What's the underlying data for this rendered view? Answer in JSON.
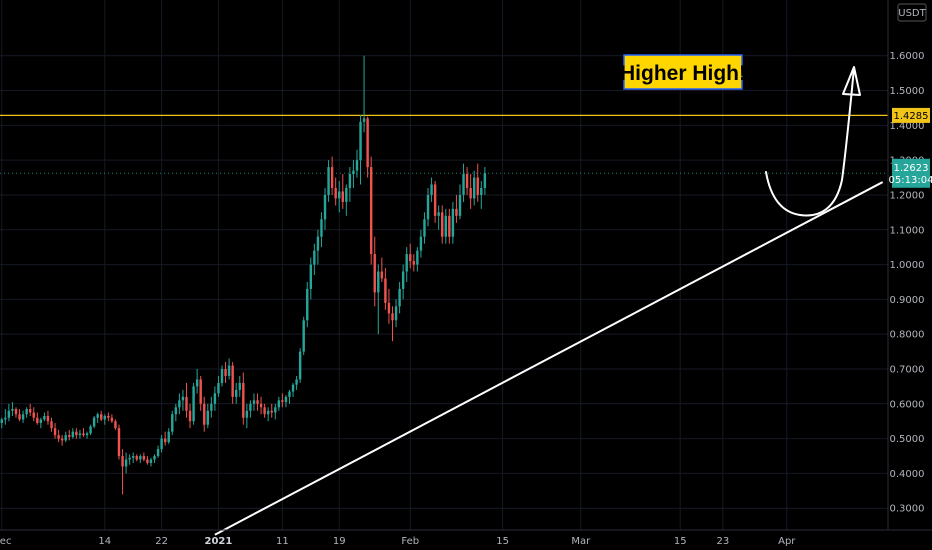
{
  "chart_data": {
    "type": "candlestick",
    "currency": "USDT",
    "y_ticks": [
      0.3,
      0.4,
      0.5,
      0.6,
      0.7,
      0.8,
      0.9,
      1.0,
      1.1,
      1.2,
      1.3,
      1.4,
      1.5,
      1.6
    ],
    "y_tick_labels": [
      "0.3000",
      "0.4000",
      "0.5000",
      "0.6000",
      "0.7000",
      "0.8000",
      "0.9000",
      "1.0000",
      "1.1000",
      "1.2000",
      "1.3000",
      "1.4000",
      "1.5000",
      "1.6000"
    ],
    "ylim": [
      0.2375,
      1.76
    ],
    "x_tick_labels": [
      "Dec",
      "14",
      "22",
      "2021",
      "11",
      "19",
      "Feb",
      "15",
      "Mar",
      "15",
      "23",
      "Apr"
    ],
    "x_tick_bold": [
      "2021"
    ],
    "x_tick_candle_index": [
      0,
      29,
      45,
      61,
      79,
      95,
      115,
      141,
      163,
      191,
      203,
      221
    ],
    "total_slots": 250,
    "colors": {
      "up": "#26a69a",
      "down": "#ef5350",
      "resistance": "#f0c419",
      "current_badge": "#26a69a",
      "callout_bg": "#ffd600",
      "callout_border": "#2962ff"
    },
    "resistance_level": 1.4285,
    "resistance_label": "1.4285",
    "current_price_label": "1.2623",
    "countdown_label": "05:13:04",
    "current_price": 1.2623,
    "annotation": "Higher High!",
    "trendline": {
      "start": {
        "candle": 60,
        "price": 0.224
      },
      "end": {
        "candle": 248,
        "price": 1.237
      }
    },
    "candles": [
      [
        0.545,
        0.56,
        0.53,
        0.555
      ],
      [
        0.555,
        0.585,
        0.54,
        0.56
      ],
      [
        0.56,
        0.6,
        0.55,
        0.58
      ],
      [
        0.58,
        0.605,
        0.565,
        0.585
      ],
      [
        0.585,
        0.59,
        0.56,
        0.57
      ],
      [
        0.57,
        0.585,
        0.55,
        0.555
      ],
      [
        0.555,
        0.58,
        0.545,
        0.57
      ],
      [
        0.57,
        0.59,
        0.56,
        0.585
      ],
      [
        0.585,
        0.6,
        0.565,
        0.575
      ],
      [
        0.575,
        0.59,
        0.55,
        0.56
      ],
      [
        0.56,
        0.575,
        0.54,
        0.545
      ],
      [
        0.545,
        0.56,
        0.53,
        0.555
      ],
      [
        0.555,
        0.575,
        0.55,
        0.565
      ],
      [
        0.565,
        0.58,
        0.54,
        0.55
      ],
      [
        0.55,
        0.56,
        0.52,
        0.53
      ],
      [
        0.53,
        0.545,
        0.5,
        0.51
      ],
      [
        0.51,
        0.525,
        0.49,
        0.5
      ],
      [
        0.5,
        0.51,
        0.48,
        0.495
      ],
      [
        0.495,
        0.52,
        0.49,
        0.51
      ],
      [
        0.51,
        0.525,
        0.495,
        0.505
      ],
      [
        0.505,
        0.53,
        0.5,
        0.52
      ],
      [
        0.52,
        0.53,
        0.5,
        0.51
      ],
      [
        0.51,
        0.525,
        0.5,
        0.515
      ],
      [
        0.515,
        0.53,
        0.505,
        0.51
      ],
      [
        0.51,
        0.52,
        0.5,
        0.515
      ],
      [
        0.515,
        0.54,
        0.51,
        0.535
      ],
      [
        0.535,
        0.565,
        0.53,
        0.56
      ],
      [
        0.56,
        0.575,
        0.545,
        0.57
      ],
      [
        0.57,
        0.58,
        0.55,
        0.555
      ],
      [
        0.555,
        0.57,
        0.54,
        0.565
      ],
      [
        0.565,
        0.575,
        0.55,
        0.56
      ],
      [
        0.56,
        0.57,
        0.545,
        0.55
      ],
      [
        0.55,
        0.555,
        0.525,
        0.53
      ],
      [
        0.53,
        0.54,
        0.44,
        0.45
      ],
      [
        0.45,
        0.47,
        0.34,
        0.42
      ],
      [
        0.42,
        0.46,
        0.4,
        0.44
      ],
      [
        0.44,
        0.455,
        0.425,
        0.445
      ],
      [
        0.445,
        0.46,
        0.43,
        0.45
      ],
      [
        0.45,
        0.455,
        0.435,
        0.44
      ],
      [
        0.44,
        0.455,
        0.43,
        0.45
      ],
      [
        0.45,
        0.46,
        0.435,
        0.44
      ],
      [
        0.44,
        0.45,
        0.425,
        0.43
      ],
      [
        0.43,
        0.445,
        0.42,
        0.44
      ],
      [
        0.44,
        0.455,
        0.43,
        0.45
      ],
      [
        0.45,
        0.48,
        0.445,
        0.47
      ],
      [
        0.47,
        0.51,
        0.46,
        0.5
      ],
      [
        0.5,
        0.52,
        0.48,
        0.49
      ],
      [
        0.49,
        0.53,
        0.485,
        0.52
      ],
      [
        0.52,
        0.58,
        0.51,
        0.57
      ],
      [
        0.57,
        0.6,
        0.55,
        0.59
      ],
      [
        0.59,
        0.63,
        0.57,
        0.61
      ],
      [
        0.61,
        0.64,
        0.58,
        0.62
      ],
      [
        0.62,
        0.66,
        0.56,
        0.58
      ],
      [
        0.58,
        0.6,
        0.53,
        0.55
      ],
      [
        0.55,
        0.66,
        0.54,
        0.65
      ],
      [
        0.65,
        0.7,
        0.63,
        0.67
      ],
      [
        0.67,
        0.68,
        0.58,
        0.6
      ],
      [
        0.6,
        0.62,
        0.52,
        0.54
      ],
      [
        0.54,
        0.6,
        0.53,
        0.58
      ],
      [
        0.58,
        0.62,
        0.56,
        0.6
      ],
      [
        0.6,
        0.65,
        0.58,
        0.63
      ],
      [
        0.63,
        0.68,
        0.62,
        0.66
      ],
      [
        0.66,
        0.71,
        0.65,
        0.7
      ],
      [
        0.7,
        0.72,
        0.66,
        0.68
      ],
      [
        0.68,
        0.73,
        0.67,
        0.71
      ],
      [
        0.71,
        0.72,
        0.6,
        0.62
      ],
      [
        0.62,
        0.66,
        0.6,
        0.64
      ],
      [
        0.64,
        0.68,
        0.62,
        0.66
      ],
      [
        0.66,
        0.69,
        0.54,
        0.56
      ],
      [
        0.56,
        0.6,
        0.53,
        0.58
      ],
      [
        0.58,
        0.61,
        0.56,
        0.6
      ],
      [
        0.6,
        0.63,
        0.58,
        0.61
      ],
      [
        0.61,
        0.63,
        0.58,
        0.6
      ],
      [
        0.6,
        0.62,
        0.57,
        0.59
      ],
      [
        0.59,
        0.6,
        0.56,
        0.57
      ],
      [
        0.57,
        0.59,
        0.55,
        0.58
      ],
      [
        0.58,
        0.6,
        0.56,
        0.575
      ],
      [
        0.575,
        0.6,
        0.555,
        0.59
      ],
      [
        0.59,
        0.62,
        0.58,
        0.61
      ],
      [
        0.61,
        0.63,
        0.59,
        0.605
      ],
      [
        0.605,
        0.625,
        0.59,
        0.62
      ],
      [
        0.62,
        0.64,
        0.6,
        0.635
      ],
      [
        0.635,
        0.66,
        0.62,
        0.655
      ],
      [
        0.655,
        0.68,
        0.64,
        0.67
      ],
      [
        0.67,
        0.76,
        0.66,
        0.75
      ],
      [
        0.75,
        0.85,
        0.74,
        0.84
      ],
      [
        0.84,
        0.95,
        0.82,
        0.93
      ],
      [
        0.93,
        1.02,
        0.9,
        1.0
      ],
      [
        1.0,
        1.06,
        0.97,
        1.04
      ],
      [
        1.04,
        1.1,
        1.0,
        1.08
      ],
      [
        1.08,
        1.15,
        1.05,
        1.13
      ],
      [
        1.13,
        1.22,
        1.1,
        1.2
      ],
      [
        1.2,
        1.3,
        1.18,
        1.28
      ],
      [
        1.28,
        1.31,
        1.2,
        1.22
      ],
      [
        1.22,
        1.25,
        1.17,
        1.19
      ],
      [
        1.19,
        1.24,
        1.15,
        1.21
      ],
      [
        1.21,
        1.26,
        1.16,
        1.18
      ],
      [
        1.18,
        1.23,
        1.14,
        1.22
      ],
      [
        1.22,
        1.28,
        1.18,
        1.26
      ],
      [
        1.26,
        1.3,
        1.22,
        1.27
      ],
      [
        1.27,
        1.33,
        1.25,
        1.3
      ],
      [
        1.3,
        1.43,
        1.23,
        1.41
      ],
      [
        1.41,
        1.6,
        1.38,
        1.42
      ],
      [
        1.42,
        1.425,
        1.25,
        1.28
      ],
      [
        1.28,
        1.31,
        1.0,
        1.03
      ],
      [
        1.03,
        1.08,
        0.88,
        0.92
      ],
      [
        0.92,
        1.0,
        0.8,
        0.98
      ],
      [
        0.98,
        1.02,
        0.95,
        0.96
      ],
      [
        0.96,
        0.99,
        0.87,
        0.89
      ],
      [
        0.89,
        0.93,
        0.83,
        0.86
      ],
      [
        0.86,
        0.88,
        0.78,
        0.84
      ],
      [
        0.84,
        0.9,
        0.82,
        0.88
      ],
      [
        0.88,
        0.95,
        0.86,
        0.93
      ],
      [
        0.93,
        1.0,
        0.9,
        0.98
      ],
      [
        0.98,
        1.05,
        0.95,
        1.03
      ],
      [
        1.03,
        1.06,
        0.99,
        1.01
      ],
      [
        1.01,
        1.03,
        0.98,
        1.0
      ],
      [
        1.0,
        1.05,
        0.98,
        1.04
      ],
      [
        1.04,
        1.1,
        1.02,
        1.08
      ],
      [
        1.08,
        1.15,
        1.06,
        1.13
      ],
      [
        1.13,
        1.22,
        1.11,
        1.2
      ],
      [
        1.2,
        1.25,
        1.18,
        1.23
      ],
      [
        1.23,
        1.24,
        1.12,
        1.14
      ],
      [
        1.14,
        1.17,
        1.1,
        1.15
      ],
      [
        1.15,
        1.17,
        1.06,
        1.08
      ],
      [
        1.08,
        1.16,
        1.06,
        1.14
      ],
      [
        1.14,
        1.16,
        1.06,
        1.08
      ],
      [
        1.08,
        1.18,
        1.06,
        1.16
      ],
      [
        1.16,
        1.2,
        1.12,
        1.14
      ],
      [
        1.14,
        1.23,
        1.13,
        1.2
      ],
      [
        1.2,
        1.29,
        1.18,
        1.26
      ],
      [
        1.26,
        1.28,
        1.2,
        1.22
      ],
      [
        1.22,
        1.26,
        1.16,
        1.19
      ],
      [
        1.19,
        1.27,
        1.17,
        1.25
      ],
      [
        1.25,
        1.29,
        1.18,
        1.2
      ],
      [
        1.2,
        1.24,
        1.16,
        1.22
      ],
      [
        1.22,
        1.28,
        1.2,
        1.2623
      ]
    ]
  }
}
